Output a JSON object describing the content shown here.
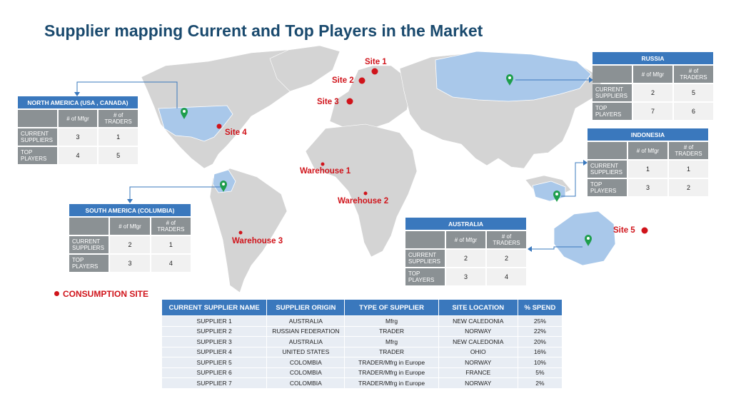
{
  "title": "Supplier mapping Current and Top Players in the Market",
  "sites": [
    {
      "id": "site-1",
      "label": "Site 1"
    },
    {
      "id": "site-2",
      "label": "Site 2"
    },
    {
      "id": "site-3",
      "label": "Site 3"
    },
    {
      "id": "site-4",
      "label": "Site 4"
    },
    {
      "id": "site-5",
      "label": "Site 5"
    },
    {
      "id": "warehouse-1",
      "label": "Warehouse 1"
    },
    {
      "id": "warehouse-2",
      "label": "Warehouse 2"
    },
    {
      "id": "warehouse-3",
      "label": "Warehouse 3"
    }
  ],
  "regions": {
    "north_america": {
      "title": "NORTH AMERICA (USA , CANADA)",
      "col1": "# of Mfgr",
      "col2": "# of TRADERS",
      "row1": "CURRENT SUPPLIERS",
      "row2": "TOP PLAYERS",
      "current_mfgr": "3",
      "current_traders": "1",
      "top_mfgr": "4",
      "top_traders": "5"
    },
    "south_america": {
      "title": "SOUTH AMERICA (COLUMBIA)",
      "col1": "# of Mfgr",
      "col2": "# of TRADERS",
      "row1": "CURRENT SUPPLIERS",
      "row2": "TOP PLAYERS",
      "current_mfgr": "2",
      "current_traders": "1",
      "top_mfgr": "3",
      "top_traders": "4"
    },
    "russia": {
      "title": "RUSSIA",
      "col1": "# of Mfgr",
      "col2": "# of TRADERS",
      "row1": "CURRENT SUPPLIERS",
      "row2": "TOP PLAYERS",
      "current_mfgr": "2",
      "current_traders": "5",
      "top_mfgr": "7",
      "top_traders": "6"
    },
    "indonesia": {
      "title": "INDONESIA",
      "col1": "# of Mfgr",
      "col2": "# of TRADERS",
      "row1": "CURRENT SUPPLIERS",
      "row2": "TOP PLAYERS",
      "current_mfgr": "1",
      "current_traders": "1",
      "top_mfgr": "3",
      "top_traders": "2"
    },
    "australia": {
      "title": "AUSTRALIA",
      "col1": "# of Mfgr",
      "col2": "# of TRADERS",
      "row1": "CURRENT SUPPLIERS",
      "row2": "TOP PLAYERS",
      "current_mfgr": "2",
      "current_traders": "2",
      "top_mfgr": "3",
      "top_traders": "4"
    }
  },
  "legend": {
    "consumption_site": "CONSUMPTION SITE"
  },
  "suppliers_table": {
    "headers": {
      "name": "CURRENT SUPPLIER NAME",
      "origin": "SUPPLIER ORIGIN",
      "type": "TYPE OF SUPPLIER",
      "location": "SITE LOCATION",
      "spend": "% SPEND"
    },
    "rows": [
      {
        "name": "SUPPLIER 1",
        "origin": "AUSTRALIA",
        "type": "Mfrg",
        "location": "NEW CALEDONIA",
        "spend": "25%"
      },
      {
        "name": "SUPPLIER 2",
        "origin": "RUSSIAN FEDERATION",
        "type": "TRADER",
        "location": "NORWAY",
        "spend": "22%"
      },
      {
        "name": "SUPPLIER 3",
        "origin": "AUSTRALIA",
        "type": "Mfrg",
        "location": "NEW CALEDONIA",
        "spend": "20%"
      },
      {
        "name": "SUPPLIER 4",
        "origin": "UNITED STATES",
        "type": "TRADER",
        "location": "OHIO",
        "spend": "16%"
      },
      {
        "name": "SUPPLIER 5",
        "origin": "COLOMBIA",
        "type": "TRADER/Mfrg in Europe",
        "location": "NORWAY",
        "spend": "10%"
      },
      {
        "name": "SUPPLIER 6",
        "origin": "COLOMBIA",
        "type": "TRADER/Mfrg in Europe",
        "location": "FRANCE",
        "spend": "5%"
      },
      {
        "name": "SUPPLIER 7",
        "origin": "COLOMBIA",
        "type": "TRADER/Mfrg in Europe",
        "location": "NORWAY",
        "spend": "2%"
      }
    ]
  },
  "colors": {
    "title": "#1a4a6e",
    "header_blue": "#3a78bd",
    "header_gray": "#8b9194",
    "land": "#d4d4d4",
    "highlight_land": "#a9c8ea",
    "site_red": "#d0141b",
    "pin_green": "#1e9e4c"
  }
}
